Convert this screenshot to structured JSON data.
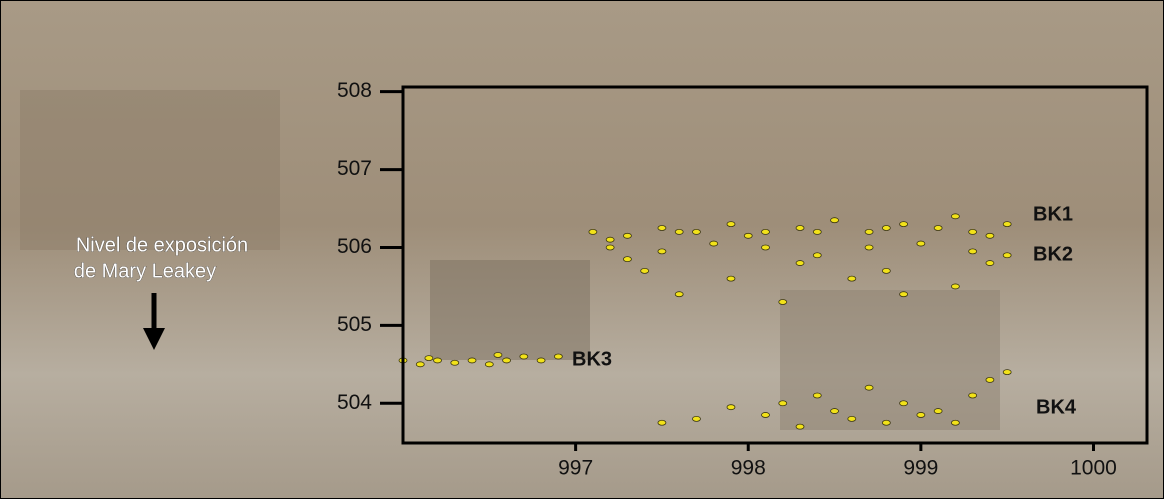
{
  "chart_data": {
    "type": "scatter",
    "xlim": [
      996.0,
      1000.31
    ],
    "ylim": [
      503.49,
      508.06
    ],
    "xticks": [
      997,
      998,
      999,
      1000
    ],
    "yticks": [
      504,
      505,
      506,
      507,
      508
    ],
    "annotation": "Nivel de exposición",
    "annotation2": "de Mary Leakey",
    "series": [
      {
        "name": "BK1",
        "color": "#f2e21a",
        "x": [
          997.1,
          997.3,
          997.5,
          997.7,
          997.9,
          998.1,
          998.3,
          998.5,
          998.7,
          998.9,
          999.1,
          999.3,
          999.5,
          997.2,
          997.6,
          998.0,
          998.4,
          998.8,
          999.2,
          999.4
        ],
        "values": [
          506.2,
          506.15,
          506.25,
          506.2,
          506.3,
          506.2,
          506.25,
          506.35,
          506.2,
          506.3,
          506.25,
          506.2,
          506.3,
          506.1,
          506.2,
          506.15,
          506.2,
          506.25,
          506.4,
          506.15
        ]
      },
      {
        "name": "BK2",
        "color": "#f2e21a",
        "x": [
          997.2,
          997.5,
          997.8,
          998.1,
          998.4,
          998.7,
          999.0,
          999.3,
          999.5,
          997.4,
          997.9,
          998.3,
          998.8,
          999.2,
          997.6,
          998.2,
          998.6,
          999.4,
          997.3,
          998.9
        ],
        "values": [
          506.0,
          505.95,
          506.05,
          506.0,
          505.9,
          506.0,
          506.05,
          505.95,
          505.9,
          505.7,
          505.6,
          505.8,
          505.7,
          505.5,
          505.4,
          505.3,
          505.6,
          505.8,
          505.85,
          505.4
        ]
      },
      {
        "name": "BK3",
        "color": "#f2e21a",
        "x": [
          996.0,
          996.1,
          996.2,
          996.3,
          996.4,
          996.5,
          996.6,
          996.7,
          996.8,
          996.9,
          996.15,
          996.55
        ],
        "values": [
          504.55,
          504.5,
          504.55,
          504.52,
          504.55,
          504.5,
          504.55,
          504.6,
          504.55,
          504.6,
          504.58,
          504.62
        ]
      },
      {
        "name": "BK4",
        "color": "#f2e21a",
        "x": [
          997.5,
          997.7,
          997.9,
          998.1,
          998.2,
          998.3,
          998.4,
          998.5,
          998.6,
          998.7,
          998.8,
          998.9,
          999.0,
          999.1,
          999.2,
          999.3,
          999.4,
          999.5
        ],
        "values": [
          503.75,
          503.8,
          503.95,
          503.85,
          504.0,
          503.7,
          504.1,
          503.9,
          503.8,
          504.2,
          503.75,
          504.0,
          503.85,
          503.9,
          503.75,
          504.1,
          504.3,
          504.4
        ]
      }
    ]
  }
}
